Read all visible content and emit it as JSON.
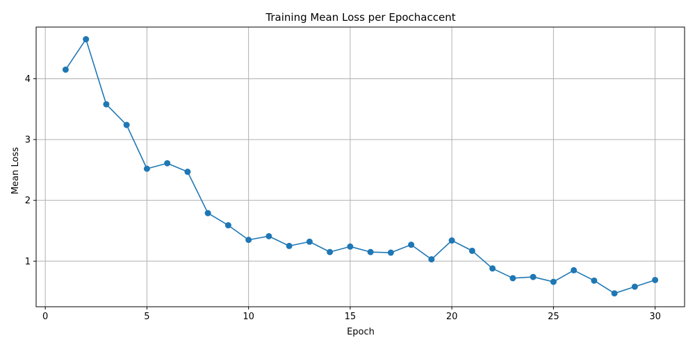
{
  "chart_data": {
    "type": "line",
    "title": "Training Mean Loss per Epochaccent",
    "xlabel": "Epoch",
    "ylabel": "Mean Loss",
    "xlim": [
      -0.45,
      31.45
    ],
    "ylim": [
      0.25,
      4.85
    ],
    "xticks": [
      0,
      5,
      10,
      15,
      20,
      25,
      30
    ],
    "yticks": [
      1,
      2,
      3,
      4
    ],
    "grid": true,
    "series": [
      {
        "color": "#1f77b4",
        "marker": "circle",
        "x": [
          1,
          2,
          3,
          4,
          5,
          6,
          7,
          8,
          9,
          10,
          11,
          12,
          13,
          14,
          15,
          16,
          17,
          18,
          19,
          20,
          21,
          22,
          23,
          24,
          25,
          26,
          27,
          28,
          29,
          30
        ],
        "y": [
          4.15,
          4.65,
          3.58,
          3.24,
          2.52,
          2.61,
          2.47,
          1.79,
          1.59,
          1.35,
          1.41,
          1.25,
          1.32,
          1.15,
          1.24,
          1.15,
          1.14,
          1.27,
          1.03,
          1.34,
          1.17,
          0.88,
          0.72,
          0.74,
          0.66,
          0.85,
          0.68,
          0.47,
          0.58,
          0.69
        ]
      }
    ]
  }
}
